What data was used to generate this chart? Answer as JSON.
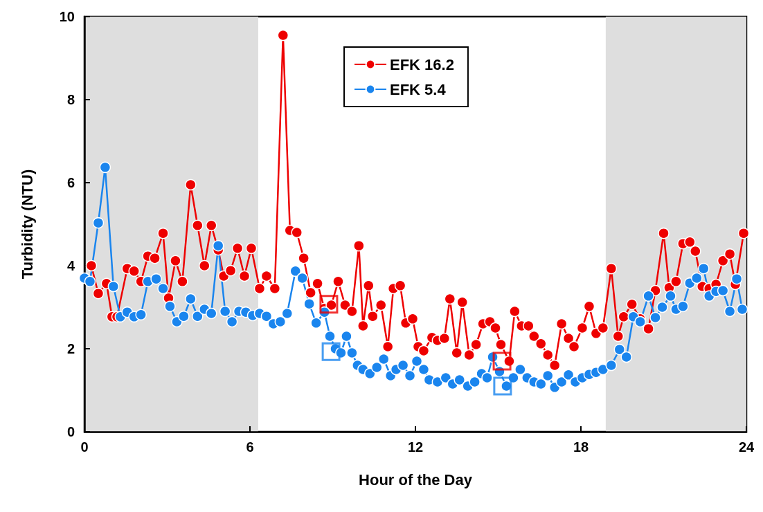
{
  "chart_data": {
    "type": "line",
    "xlabel": "Hour of the Day",
    "ylabel": "Turbidity (NTU)",
    "xlim": [
      0,
      24
    ],
    "xticks": [
      0,
      6,
      12,
      18,
      24
    ],
    "ylim": [
      0,
      10
    ],
    "yticks": [
      0,
      2,
      4,
      6,
      8,
      10
    ],
    "grid": false,
    "legend": "top",
    "marker": "circle",
    "line_style": "solid",
    "bands": [
      {
        "axis": "x",
        "from": 0,
        "to": 6.3,
        "color": "#dedede"
      },
      {
        "axis": "x",
        "from": 18.9,
        "to": 24,
        "color": "#dedede"
      }
    ],
    "series": [
      {
        "name": "EFK 16.2",
        "color": "#ee0000",
        "x": [
          0.25,
          0.5,
          0.8,
          1.0,
          1.18,
          1.55,
          1.8,
          2.05,
          2.3,
          2.55,
          2.85,
          3.05,
          3.3,
          3.55,
          3.85,
          4.1,
          4.35,
          4.6,
          4.85,
          5.05,
          5.3,
          5.55,
          5.8,
          6.05,
          6.35,
          6.6,
          6.9,
          7.2,
          7.45,
          7.7,
          7.95,
          8.2,
          8.45,
          8.7,
          8.95,
          9.2,
          9.45,
          9.7,
          9.95,
          10.1,
          10.3,
          10.45,
          10.75,
          11.0,
          11.2,
          11.45,
          11.65,
          11.9,
          12.1,
          12.3,
          12.6,
          12.8,
          13.05,
          13.25,
          13.5,
          13.7,
          13.95,
          14.2,
          14.45,
          14.7,
          14.9,
          15.1,
          15.4,
          15.6,
          15.85,
          16.1,
          16.3,
          16.55,
          16.8,
          17.05,
          17.3,
          17.55,
          17.75,
          18.05,
          18.3,
          18.55,
          18.8,
          19.1,
          19.35,
          19.55,
          19.85,
          20.15,
          20.45,
          20.7,
          21.0,
          21.2,
          21.45,
          21.7,
          21.95,
          22.15,
          22.4,
          22.65,
          22.9,
          23.15,
          23.4,
          23.6,
          23.9
        ],
        "values": [
          4.0,
          3.33,
          3.57,
          2.77,
          2.77,
          3.93,
          3.87,
          3.62,
          4.23,
          4.18,
          4.78,
          3.22,
          4.12,
          3.62,
          5.95,
          4.97,
          4.0,
          4.97,
          4.38,
          3.75,
          3.88,
          4.42,
          3.75,
          4.42,
          3.45,
          3.75,
          3.45,
          9.55,
          4.85,
          4.8,
          4.18,
          3.35,
          3.57,
          2.97,
          3.05,
          3.62,
          3.05,
          2.9,
          4.48,
          2.55,
          3.52,
          2.78,
          3.05,
          2.05,
          3.45,
          3.52,
          2.62,
          2.72,
          2.05,
          1.95,
          2.27,
          2.2,
          2.25,
          3.2,
          1.9,
          3.12,
          1.85,
          2.1,
          2.6,
          2.65,
          2.5,
          2.1,
          1.7,
          2.9,
          2.55,
          2.55,
          2.3,
          2.12,
          1.85,
          1.6,
          2.6,
          2.25,
          2.05,
          2.5,
          3.02,
          2.37,
          2.5,
          3.93,
          2.3,
          2.77,
          3.07,
          2.72,
          2.48,
          3.4,
          4.78,
          3.47,
          3.62,
          4.53,
          4.57,
          4.35,
          3.5,
          3.45,
          3.55,
          4.12,
          4.28,
          3.55,
          4.78
        ]
      },
      {
        "name": "EFK 5.4",
        "color": "#1a85ee",
        "x": [
          0,
          0.2,
          0.5,
          0.75,
          1.05,
          1.3,
          1.55,
          1.8,
          2.05,
          2.3,
          2.6,
          2.85,
          3.1,
          3.35,
          3.6,
          3.85,
          4.1,
          4.35,
          4.6,
          4.85,
          5.1,
          5.35,
          5.6,
          5.85,
          6.1,
          6.35,
          6.6,
          6.85,
          7.1,
          7.35,
          7.65,
          7.9,
          8.15,
          8.4,
          8.7,
          8.9,
          9.1,
          9.3,
          9.5,
          9.7,
          9.9,
          10.1,
          10.35,
          10.6,
          10.85,
          11.1,
          11.3,
          11.55,
          11.8,
          12.05,
          12.3,
          12.5,
          12.8,
          13.1,
          13.35,
          13.6,
          13.9,
          14.15,
          14.4,
          14.6,
          14.8,
          15.05,
          15.3,
          15.55,
          15.8,
          16.05,
          16.3,
          16.55,
          16.8,
          17.05,
          17.3,
          17.55,
          17.8,
          18.05,
          18.3,
          18.55,
          18.8,
          19.1,
          19.4,
          19.65,
          19.9,
          20.15,
          20.45,
          20.7,
          20.95,
          21.25,
          21.45,
          21.7,
          21.95,
          22.2,
          22.45,
          22.65,
          22.9,
          23.15,
          23.4,
          23.65,
          23.85
        ],
        "values": [
          3.7,
          3.62,
          5.03,
          6.37,
          3.5,
          2.77,
          2.88,
          2.77,
          2.82,
          3.62,
          3.68,
          3.45,
          3.02,
          2.65,
          2.78,
          3.2,
          2.78,
          2.95,
          2.85,
          4.48,
          2.9,
          2.65,
          2.9,
          2.88,
          2.8,
          2.85,
          2.78,
          2.6,
          2.65,
          2.85,
          3.87,
          3.7,
          3.08,
          2.62,
          2.88,
          2.3,
          2.0,
          1.9,
          2.3,
          1.9,
          1.6,
          1.5,
          1.4,
          1.55,
          1.75,
          1.35,
          1.5,
          1.6,
          1.35,
          1.7,
          1.5,
          1.25,
          1.2,
          1.3,
          1.15,
          1.25,
          1.1,
          1.2,
          1.4,
          1.3,
          1.8,
          1.45,
          1.1,
          1.3,
          1.5,
          1.3,
          1.2,
          1.15,
          1.35,
          1.07,
          1.2,
          1.37,
          1.2,
          1.3,
          1.38,
          1.43,
          1.5,
          1.6,
          1.98,
          1.8,
          2.77,
          2.65,
          3.27,
          2.75,
          3.0,
          3.27,
          2.95,
          3.02,
          3.58,
          3.7,
          3.93,
          3.27,
          3.38,
          3.4,
          2.9,
          3.68,
          2.95
        ]
      },
      {
        "type": "scatter",
        "marker": "square",
        "color": "#ee0000",
        "x": [
          8.86,
          15.14
        ],
        "values": [
          3.07,
          1.7
        ]
      },
      {
        "type": "scatter",
        "marker": "square",
        "color": "#1a85ee",
        "x": [
          8.94,
          15.16
        ],
        "values": [
          1.93,
          1.1
        ]
      }
    ]
  }
}
